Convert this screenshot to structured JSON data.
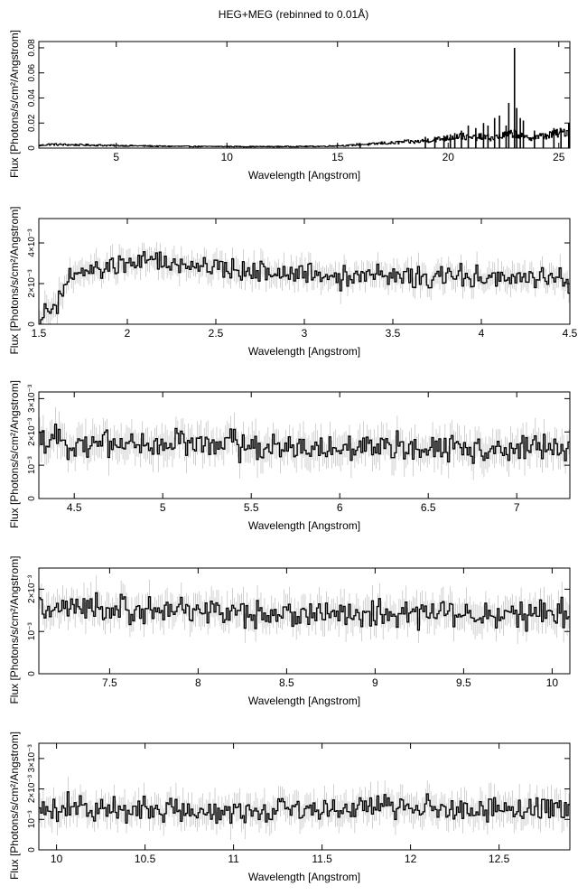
{
  "figure": {
    "title": "HEG+MEG (rebinned to 0.01Å)",
    "colors": {
      "line": "#000000",
      "errorbar": "#bdbdbd",
      "background": "#ffffff"
    }
  },
  "chart_data": [
    {
      "type": "line",
      "xlabel": "Wavelength [Angstrom]",
      "ylabel": "Flux [Photons/s/cm²/Angstrom]",
      "xlim": [
        1.5,
        25.5
      ],
      "ylim": [
        0,
        0.085
      ],
      "xticks": [
        5,
        10,
        15,
        20,
        25
      ],
      "xtick_labels": [
        "5",
        "10",
        "15",
        "20",
        "25"
      ],
      "yticks": [
        0,
        0.02,
        0.04,
        0.06,
        0.08
      ],
      "ytick_labels": [
        "0",
        "0.02",
        "0.04",
        "0.06",
        "0.08"
      ],
      "grid": false,
      "series": [
        {
          "points": [
            [
              1.5,
              0.002
            ],
            [
              2,
              0.003
            ],
            [
              2.5,
              0.0028
            ],
            [
              3,
              0.0026
            ],
            [
              4,
              0.0024
            ],
            [
              5,
              0.002
            ],
            [
              6,
              0.0018
            ],
            [
              7,
              0.0015
            ],
            [
              8,
              0.0014
            ],
            [
              9,
              0.0013
            ],
            [
              10,
              0.0013
            ],
            [
              11,
              0.0012
            ],
            [
              12,
              0.0012
            ],
            [
              13,
              0.0013
            ],
            [
              14,
              0.0014
            ],
            [
              14.5,
              0.0015
            ],
            [
              15,
              0.002
            ],
            [
              15.5,
              0.002
            ],
            [
              16,
              0.003
            ],
            [
              16.5,
              0.003
            ],
            [
              17,
              0.004
            ],
            [
              17.5,
              0.004
            ],
            [
              18,
              0.005
            ],
            [
              18.5,
              0.005
            ],
            [
              19,
              0.006
            ],
            [
              19.5,
              0.007
            ],
            [
              20,
              0.008
            ],
            [
              20.5,
              0.01
            ],
            [
              21,
              0.008
            ],
            [
              21.5,
              0.009
            ],
            [
              22,
              0.008
            ],
            [
              22.5,
              0.01
            ],
            [
              23,
              0.012
            ],
            [
              23.5,
              0.008
            ],
            [
              24,
              0.009
            ],
            [
              24.5,
              0.01
            ],
            [
              25,
              0.012
            ],
            [
              25.5,
              0.014
            ]
          ],
          "lines": [
            [
              16.02,
              0.004
            ],
            [
              18.97,
              0.009
            ],
            [
              19.4,
              0.009
            ],
            [
              19.81,
              0.01
            ],
            [
              20.1,
              0.011
            ],
            [
              20.3,
              0.012
            ],
            [
              20.6,
              0.014
            ],
            [
              20.91,
              0.018
            ],
            [
              21.25,
              0.016
            ],
            [
              21.6,
              0.02
            ],
            [
              21.8,
              0.018
            ],
            [
              22.1,
              0.024
            ],
            [
              22.32,
              0.026
            ],
            [
              22.62,
              0.018
            ],
            [
              22.74,
              0.036
            ],
            [
              23.0,
              0.08
            ],
            [
              23.1,
              0.032
            ],
            [
              23.26,
              0.024
            ],
            [
              23.4,
              0.022
            ],
            [
              23.9,
              0.014
            ],
            [
              24.3,
              0.012
            ],
            [
              24.78,
              0.016
            ],
            [
              25.1,
              0.015
            ],
            [
              25.45,
              0.02
            ]
          ]
        }
      ]
    },
    {
      "type": "line",
      "xlabel": "Wavelength [Angstrom]",
      "ylabel": "Flux [Photons/s/cm²/Angstrom]",
      "xlim": [
        1.5,
        4.5
      ],
      "ylim": [
        0,
        0.0052
      ],
      "xticks": [
        1.5,
        2,
        2.5,
        3,
        3.5,
        4,
        4.5
      ],
      "xtick_labels": [
        "1.5",
        "2",
        "2.5",
        "3",
        "3.5",
        "4",
        "4.5"
      ],
      "yticks": [
        0,
        0.002,
        0.004
      ],
      "ytick_labels": [
        "0",
        "2×10⁻³",
        "4×10⁻³"
      ],
      "grid": false,
      "series": [
        {
          "points": [
            [
              1.5,
              0.0002
            ],
            [
              1.55,
              0.0006
            ],
            [
              1.6,
              0.0008
            ],
            [
              1.65,
              0.002
            ],
            [
              1.7,
              0.0024
            ],
            [
              1.8,
              0.0026
            ],
            [
              1.9,
              0.0028
            ],
            [
              2.0,
              0.003
            ],
            [
              2.1,
              0.0031
            ],
            [
              2.2,
              0.003
            ],
            [
              2.3,
              0.0029
            ],
            [
              2.4,
              0.0028
            ],
            [
              2.5,
              0.0027
            ],
            [
              2.6,
              0.0027
            ],
            [
              2.7,
              0.0026
            ],
            [
              2.8,
              0.0026
            ],
            [
              2.9,
              0.0025
            ],
            [
              3.0,
              0.0025
            ],
            [
              3.2,
              0.0024
            ],
            [
              3.4,
              0.0024
            ],
            [
              3.6,
              0.0023
            ],
            [
              3.8,
              0.0023
            ],
            [
              4.0,
              0.0023
            ],
            [
              4.2,
              0.0022
            ],
            [
              4.4,
              0.0022
            ],
            [
              4.5,
              0.002
            ]
          ],
          "noise": 0.0005
        }
      ]
    },
    {
      "type": "line",
      "xlabel": "Wavelength [Angstrom]",
      "ylabel": "Flux [Photons/s/cm²/Angstrom]",
      "xlim": [
        4.3,
        7.3
      ],
      "ylim": [
        0,
        0.0032
      ],
      "xticks": [
        4.5,
        5,
        5.5,
        6,
        6.5,
        7
      ],
      "xtick_labels": [
        "4.5",
        "5",
        "5.5",
        "6",
        "6.5",
        "7"
      ],
      "yticks": [
        0,
        0.001,
        0.002,
        0.003
      ],
      "ytick_labels": [
        "0",
        "10⁻³",
        "2×10⁻³",
        "3×10⁻³"
      ],
      "grid": false,
      "series": [
        {
          "points": [
            [
              4.3,
              0.0017
            ],
            [
              4.5,
              0.0017
            ],
            [
              4.7,
              0.0017
            ],
            [
              4.9,
              0.0016
            ],
            [
              5.1,
              0.0017
            ],
            [
              5.3,
              0.0016
            ],
            [
              5.5,
              0.0016
            ],
            [
              5.7,
              0.0016
            ],
            [
              5.9,
              0.0015
            ],
            [
              6.1,
              0.0015
            ],
            [
              6.3,
              0.0015
            ],
            [
              6.5,
              0.0015
            ],
            [
              6.7,
              0.0015
            ],
            [
              6.9,
              0.0015
            ],
            [
              7.1,
              0.0015
            ],
            [
              7.3,
              0.0015
            ]
          ],
          "noise": 0.0004
        }
      ]
    },
    {
      "type": "line",
      "xlabel": "Wavelength [Angstrom]",
      "ylabel": "Flux [Photons/s/cm²/Angstrom]",
      "xlim": [
        7.1,
        10.1
      ],
      "ylim": [
        0,
        0.0025
      ],
      "xticks": [
        7.5,
        8,
        8.5,
        9,
        9.5,
        10
      ],
      "xtick_labels": [
        "7.5",
        "8",
        "8.5",
        "9",
        "9.5",
        "10"
      ],
      "yticks": [
        0,
        0.001,
        0.002
      ],
      "ytick_labels": [
        "0",
        "10⁻³",
        "2×10⁻³"
      ],
      "grid": false,
      "series": [
        {
          "points": [
            [
              7.1,
              0.0015
            ],
            [
              7.5,
              0.0015
            ],
            [
              8.0,
              0.0015
            ],
            [
              8.5,
              0.0014
            ],
            [
              9.0,
              0.0014
            ],
            [
              9.5,
              0.0014
            ],
            [
              10.1,
              0.0014
            ]
          ],
          "noise": 0.0003
        }
      ]
    },
    {
      "type": "line",
      "xlabel": "Wavelength [Angstrom]",
      "ylabel": "Flux [Photons/s/cm²/Angstrom]",
      "xlim": [
        9.9,
        12.9
      ],
      "ylim": [
        0,
        0.0035
      ],
      "xticks": [
        10,
        10.5,
        11,
        11.5,
        12,
        12.5
      ],
      "xtick_labels": [
        "10",
        "10.5",
        "11",
        "11.5",
        "12",
        "12.5"
      ],
      "yticks": [
        0,
        0.001,
        0.002,
        0.003
      ],
      "ytick_labels": [
        "0",
        "10⁻³",
        "2×10⁻³",
        "3×10⁻³"
      ],
      "grid": false,
      "series": [
        {
          "points": [
            [
              9.9,
              0.0013
            ],
            [
              10.5,
              0.0013
            ],
            [
              11.0,
              0.0013
            ],
            [
              11.5,
              0.0014
            ],
            [
              12.0,
              0.0014
            ],
            [
              12.5,
              0.0013
            ],
            [
              12.9,
              0.0014
            ]
          ],
          "noise": 0.0004
        }
      ]
    }
  ]
}
